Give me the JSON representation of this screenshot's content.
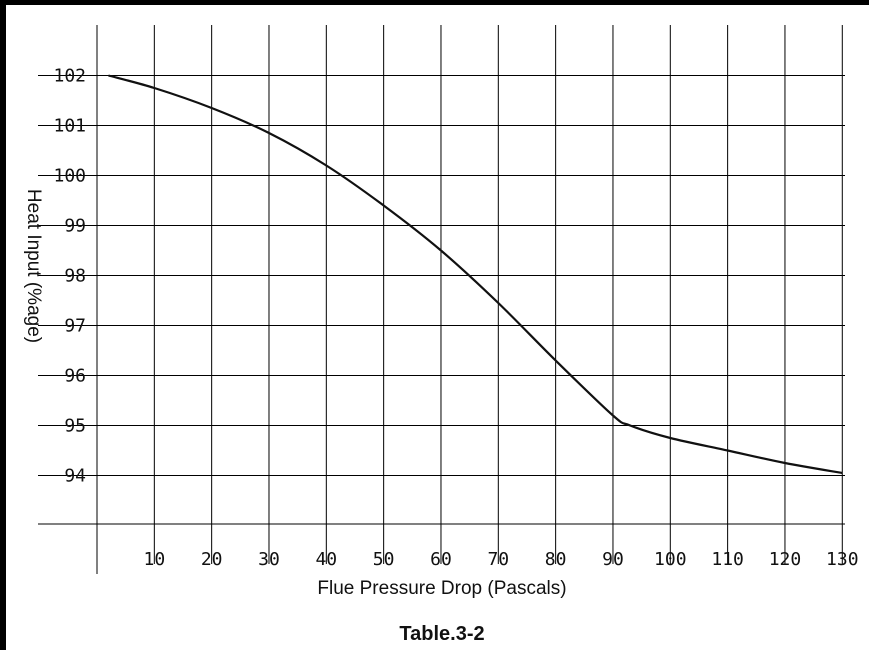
{
  "chart_data": {
    "type": "line",
    "xlabel": "Flue Pressure Drop (Pascals)",
    "ylabel": "Heat Input (%age)",
    "caption": "Table.3-2",
    "x_ticks": [
      "10",
      "20",
      "30",
      "40",
      "50",
      "60",
      "70",
      "80",
      "90",
      "100",
      "110",
      "120",
      "130"
    ],
    "y_ticks": [
      "102",
      "101",
      "100",
      "99",
      "98",
      "97",
      "96",
      "95",
      "94"
    ],
    "xlim": [
      0,
      130
    ],
    "ylim": [
      93,
      103
    ],
    "grid": true,
    "series": [
      {
        "x": [
          2,
          10,
          20,
          30,
          40,
          50,
          60,
          70,
          80,
          90,
          93,
          100,
          110,
          120,
          130
        ],
        "values": [
          102.0,
          101.75,
          101.35,
          100.85,
          100.2,
          99.4,
          98.5,
          97.45,
          96.3,
          95.2,
          95.0,
          94.75,
          94.5,
          94.25,
          94.05
        ]
      }
    ]
  }
}
